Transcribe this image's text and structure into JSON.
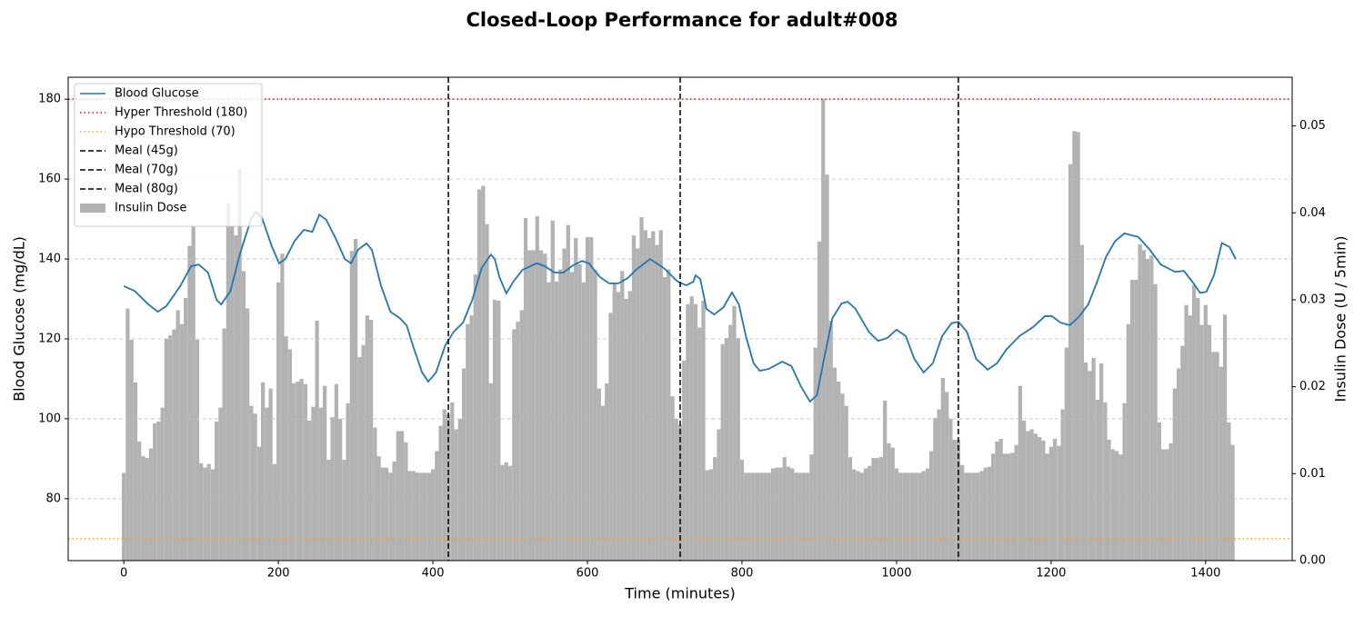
{
  "chart_data": {
    "type": "combo",
    "title": "Closed-Loop Performance for adult#008",
    "xlabel": "Time (minutes)",
    "ylabel": "Blood Glucose (mg/dL)",
    "y2label": "Insulin Dose (U / 5min)",
    "xlim": [
      -72,
      1512
    ],
    "xticks": [
      0,
      200,
      400,
      600,
      800,
      1000,
      1200,
      1400
    ],
    "ylim": [
      64.5,
      185.5
    ],
    "yticks": [
      80,
      100,
      120,
      140,
      160,
      180
    ],
    "y2lim": [
      0,
      0.0556
    ],
    "y2ticks": [
      {
        "value": 0,
        "label": "0.00"
      },
      0.01,
      0.02,
      0.03,
      0.04,
      0.05
    ],
    "y2_label_color": "#808080",
    "grid": "y",
    "legend": "upper left",
    "series": [
      {
        "name": "Blood Glucose",
        "type": "line",
        "color": "#1f77b4",
        "x": [
          0,
          14,
          32,
          44,
          55,
          73,
          87,
          97,
          109,
          120,
          126,
          138,
          150,
          165,
          171,
          179,
          191,
          201,
          209,
          221,
          233,
          244,
          253,
          262,
          274,
          286,
          294,
          303,
          314,
          321,
          333,
          345,
          357,
          366,
          374,
          386,
          394,
          404,
          416,
          427,
          439,
          451,
          463,
          475,
          480,
          486,
          495,
          504,
          516,
          534,
          545,
          557,
          569,
          581,
          593,
          602,
          616,
          628,
          640,
          652,
          663,
          681,
          699,
          717,
          728,
          737,
          740,
          746,
          754,
          764,
          776,
          787,
          796,
          805,
          815,
          823,
          835,
          852,
          864,
          876,
          888,
          897,
          905,
          917,
          929,
          937,
          947,
          964,
          976,
          988,
          1000,
          1012,
          1023,
          1035,
          1047,
          1059,
          1071,
          1080,
          1091,
          1103,
          1118,
          1130,
          1142,
          1159,
          1177,
          1192,
          1201,
          1212,
          1224,
          1236,
          1248,
          1260,
          1271,
          1283,
          1295,
          1313,
          1327,
          1342,
          1360,
          1372,
          1384,
          1393,
          1401,
          1411,
          1421,
          1431,
          1439
        ],
        "values": [
          133.2,
          132.0,
          128.6,
          126.8,
          128.2,
          133.2,
          138.2,
          138.6,
          136.6,
          129.8,
          128.6,
          132,
          141.1,
          150.2,
          151.8,
          150.2,
          143.4,
          138.9,
          140,
          144.5,
          147.3,
          146.8,
          151.1,
          149.8,
          145.2,
          140,
          138.9,
          142.3,
          143.9,
          142.3,
          133.2,
          126.8,
          125.2,
          123.4,
          118.4,
          111.6,
          109.3,
          111.6,
          118.4,
          121.8,
          124.1,
          129.8,
          137.7,
          141.1,
          140,
          135.5,
          131.4,
          134.3,
          137.3,
          138.9,
          138.2,
          136.6,
          136.6,
          138.4,
          139.5,
          138.9,
          135.5,
          133.9,
          133.9,
          135.2,
          137.3,
          140,
          137.7,
          134.3,
          133.4,
          134.3,
          135.9,
          135,
          127.5,
          126.1,
          127.9,
          131.6,
          128.6,
          120.7,
          113.9,
          112,
          112.5,
          114.3,
          113.2,
          108.2,
          104.3,
          105.9,
          113.9,
          125.2,
          128.9,
          129.3,
          127.5,
          121.8,
          119.5,
          120.2,
          122.3,
          120.7,
          115,
          111.6,
          113.9,
          120.7,
          123.9,
          124.3,
          121.8,
          115,
          112.3,
          113.9,
          117.3,
          120.7,
          123,
          125.7,
          125.7,
          124.1,
          123.4,
          125.5,
          128.6,
          134.5,
          140.5,
          144.5,
          146.4,
          145.5,
          142.5,
          138.6,
          136.8,
          137,
          134,
          131.5,
          131.8,
          136,
          144,
          143,
          140
        ]
      },
      {
        "name": "Insulin Dose",
        "type": "bar",
        "axis": "y2",
        "color": "#b2b2b2",
        "x": [
          0,
          5,
          10,
          15,
          20,
          25,
          30,
          35,
          40,
          45,
          50,
          55,
          60,
          65,
          70,
          75,
          80,
          85,
          90,
          95,
          100,
          105,
          110,
          115,
          120,
          125,
          130,
          135,
          140,
          145,
          150,
          155,
          160,
          165,
          170,
          175,
          180,
          185,
          190,
          195,
          200,
          205,
          210,
          215,
          220,
          225,
          230,
          235,
          240,
          245,
          250,
          255,
          260,
          265,
          270,
          275,
          280,
          285,
          290,
          295,
          300,
          305,
          310,
          315,
          320,
          325,
          330,
          335,
          340,
          345,
          350,
          355,
          360,
          365,
          370,
          375,
          380,
          385,
          390,
          395,
          400,
          405,
          410,
          415,
          420,
          425,
          430,
          435,
          440,
          445,
          450,
          455,
          460,
          465,
          470,
          475,
          480,
          485,
          490,
          495,
          500,
          505,
          510,
          515,
          520,
          525,
          530,
          535,
          540,
          545,
          550,
          555,
          560,
          565,
          570,
          575,
          580,
          585,
          590,
          595,
          600,
          605,
          610,
          615,
          620,
          625,
          630,
          635,
          640,
          645,
          650,
          655,
          660,
          665,
          670,
          675,
          680,
          685,
          690,
          695,
          700,
          705,
          710,
          715,
          720,
          725,
          730,
          735,
          740,
          745,
          750,
          755,
          760,
          765,
          770,
          775,
          780,
          785,
          790,
          795,
          800,
          805,
          810,
          815,
          820,
          825,
          830,
          835,
          840,
          845,
          850,
          855,
          860,
          865,
          870,
          875,
          880,
          885,
          890,
          895,
          900,
          905,
          910,
          915,
          920,
          925,
          930,
          935,
          940,
          945,
          950,
          955,
          960,
          965,
          970,
          975,
          980,
          985,
          990,
          995,
          1000,
          1005,
          1010,
          1015,
          1020,
          1025,
          1030,
          1035,
          1040,
          1045,
          1050,
          1055,
          1060,
          1065,
          1070,
          1075,
          1080,
          1085,
          1090,
          1095,
          1100,
          1105,
          1110,
          1115,
          1120,
          1125,
          1130,
          1135,
          1140,
          1145,
          1150,
          1155,
          1160,
          1165,
          1170,
          1175,
          1180,
          1185,
          1190,
          1195,
          1200,
          1205,
          1210,
          1215,
          1220,
          1225,
          1230,
          1235,
          1240,
          1245,
          1250,
          1255,
          1260,
          1265,
          1270,
          1275,
          1280,
          1285,
          1290,
          1295,
          1300,
          1305,
          1310,
          1315,
          1320,
          1325,
          1330,
          1335,
          1340,
          1345,
          1350,
          1355,
          1360,
          1365,
          1370,
          1375,
          1380,
          1385,
          1390,
          1395,
          1400,
          1405,
          1410,
          1415,
          1420,
          1425,
          1430,
          1435
        ],
        "values": [
          0.0101,
          0.029,
          0.0254,
          0.0205,
          0.0137,
          0.012,
          0.0118,
          0.0129,
          0.0158,
          0.016,
          0.0176,
          0.0255,
          0.0259,
          0.0266,
          0.0288,
          0.0272,
          0.0302,
          0.0362,
          0.0384,
          0.0254,
          0.0112,
          0.0107,
          0.0111,
          0.0105,
          0.016,
          0.0176,
          0.0267,
          0.0411,
          0.0385,
          0.0374,
          0.0451,
          0.0333,
          0.029,
          0.0178,
          0.0169,
          0.0131,
          0.0205,
          0.0176,
          0.0198,
          0.0111,
          0.032,
          0.0353,
          0.0258,
          0.0243,
          0.0204,
          0.0206,
          0.0209,
          0.0203,
          0.0161,
          0.0177,
          0.0276,
          0.0176,
          0.0201,
          0.0116,
          0.0165,
          0.0203,
          0.0163,
          0.0116,
          0.0181,
          0.0356,
          0.037,
          0.0234,
          0.0248,
          0.0282,
          0.0277,
          0.0153,
          0.012,
          0.0107,
          0.0107,
          0.0101,
          0.0114,
          0.0149,
          0.0149,
          0.0136,
          0.0103,
          0.0103,
          0.0101,
          0.0101,
          0.0101,
          0.0101,
          0.0105,
          0.0126,
          0.0155,
          0.0174,
          0.0168,
          0.0182,
          0.0151,
          0.0163,
          0.0221,
          0.0272,
          0.0282,
          0.0329,
          0.0427,
          0.0431,
          0.0387,
          0.0204,
          0.03,
          0.0299,
          0.011,
          0.0113,
          0.0109,
          0.0266,
          0.0275,
          0.0288,
          0.0394,
          0.0357,
          0.0357,
          0.0396,
          0.0357,
          0.0353,
          0.032,
          0.0391,
          0.0321,
          0.0335,
          0.0359,
          0.0386,
          0.0332,
          0.0371,
          0.0341,
          0.032,
          0.0372,
          0.0372,
          0.0334,
          0.0198,
          0.0178,
          0.0204,
          0.0285,
          0.032,
          0.0309,
          0.0333,
          0.0301,
          0.031,
          0.0374,
          0.0359,
          0.0395,
          0.038,
          0.0371,
          0.0379,
          0.0363,
          0.038,
          0.0326,
          0.0335,
          0.0189,
          0.0163,
          0.0156,
          0.023,
          0.0295,
          0.0304,
          0.0295,
          0.0268,
          0.0299,
          0.0104,
          0.0105,
          0.0119,
          0.0151,
          0.0249,
          0.0256,
          0.0271,
          0.0293,
          0.0256,
          0.0116,
          0.0101,
          0.0101,
          0.0101,
          0.0101,
          0.0101,
          0.0101,
          0.0101,
          0.0106,
          0.0107,
          0.0107,
          0.0119,
          0.0108,
          0.0106,
          0.0101,
          0.0101,
          0.0101,
          0.0101,
          0.0122,
          0.0245,
          0.0367,
          0.0531,
          0.0444,
          0.0276,
          0.0222,
          0.0206,
          0.0192,
          0.0178,
          0.0119,
          0.0105,
          0.0103,
          0.0101,
          0.0106,
          0.0109,
          0.0118,
          0.0118,
          0.0119,
          0.0184,
          0.0135,
          0.013,
          0.0106,
          0.0101,
          0.0101,
          0.0101,
          0.0101,
          0.0101,
          0.0101,
          0.0103,
          0.0106,
          0.0126,
          0.0164,
          0.0174,
          0.021,
          0.0194,
          0.0163,
          0.0139,
          0.0139,
          0.011,
          0.0101,
          0.0101,
          0.0101,
          0.0101,
          0.0103,
          0.0107,
          0.0108,
          0.0123,
          0.0137,
          0.014,
          0.0123,
          0.0123,
          0.0124,
          0.0133,
          0.0201,
          0.0161,
          0.0149,
          0.0151,
          0.0146,
          0.0142,
          0.0138,
          0.0123,
          0.0131,
          0.014,
          0.0132,
          0.0174,
          0.0245,
          0.0456,
          0.0494,
          0.0493,
          0.0363,
          0.0228,
          0.0218,
          0.0233,
          0.0185,
          0.0227,
          0.0182,
          0.0139,
          0.0128,
          0.0126,
          0.0122,
          0.0181,
          0.0272,
          0.0323,
          0.0323,
          0.0364,
          0.0357,
          0.0347,
          0.0351,
          0.0318,
          0.0159,
          0.0128,
          0.0128,
          0.0135,
          0.0198,
          0.0221,
          0.0247,
          0.0294,
          0.0282,
          0.0317,
          0.0302,
          0.0271,
          0.0294,
          0.0271,
          0.024,
          0.024,
          0.0223,
          0.0283,
          0.0159,
          0.0133
        ]
      }
    ],
    "hlines": [
      {
        "name": "Hyper Threshold (180)",
        "value": 180,
        "color": "#ff0000",
        "style": "dotted"
      },
      {
        "name": "Hypo Threshold (70)",
        "value": 70,
        "color": "#ffa500",
        "style": "dotted"
      }
    ],
    "vlines": [
      {
        "name": "Meal (45g)",
        "x": 420,
        "color": "#000000",
        "style": "dashed"
      },
      {
        "name": "Meal (70g)",
        "x": 720,
        "color": "#000000",
        "style": "dashed"
      },
      {
        "name": "Meal (80g)",
        "x": 1080,
        "color": "#000000",
        "style": "dashed"
      }
    ]
  }
}
